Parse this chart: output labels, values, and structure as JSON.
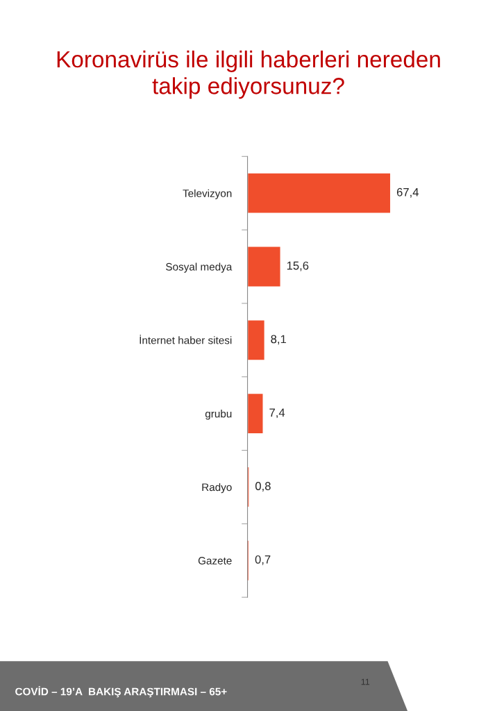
{
  "chart_data": {
    "type": "bar",
    "orientation": "horizontal",
    "title": "Koronavirüs ile ilgili haberleri nereden\ntakip ediyorsunuz?",
    "categories": [
      "Televizyon",
      "Sosyal medya",
      "İnternet haber sitesi",
      "grubu",
      "Radyo",
      "Gazete"
    ],
    "values": [
      67.4,
      15.6,
      8.1,
      7.4,
      0.8,
      0.7
    ],
    "value_labels": [
      "67,4",
      "15,6",
      "8,1",
      "7,4",
      "0,8",
      "0,7"
    ],
    "color": "#f04e2c",
    "grid": false,
    "legend": false,
    "tick_labels": "y",
    "annotations": [
      "COVİD – 19’A  BAKIŞ ARAŞTIRMASI – 65+",
      "11"
    ]
  }
}
